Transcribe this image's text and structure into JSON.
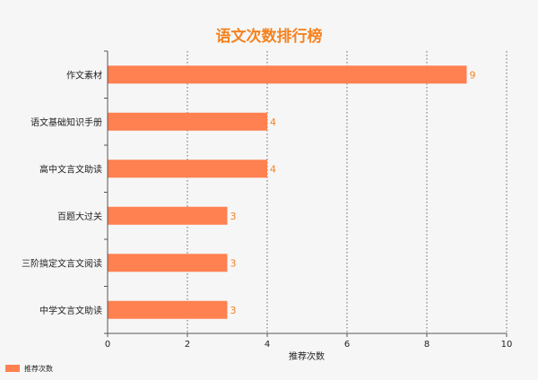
{
  "chart_data": {
    "type": "bar",
    "orientation": "horizontal",
    "title": "语文次数排行榜",
    "categories": [
      "作文素材",
      "语文基础知识手册",
      "高中文言文助读",
      "百题大过关",
      "三阶搞定文言文阅读",
      "中学文言文助读"
    ],
    "series": [
      {
        "name": "推荐次数",
        "values": [
          9,
          4,
          4,
          3,
          3,
          3
        ],
        "color": "#ff8050"
      }
    ],
    "xlabel": "推荐次数",
    "xlim": [
      0,
      10
    ],
    "xticks": [
      0,
      2,
      4,
      6,
      8,
      10
    ],
    "grid": "vertical-dotted",
    "legend_position": "bottom-left",
    "title_color": "#f5821f",
    "value_label_color": "#f5821f"
  }
}
